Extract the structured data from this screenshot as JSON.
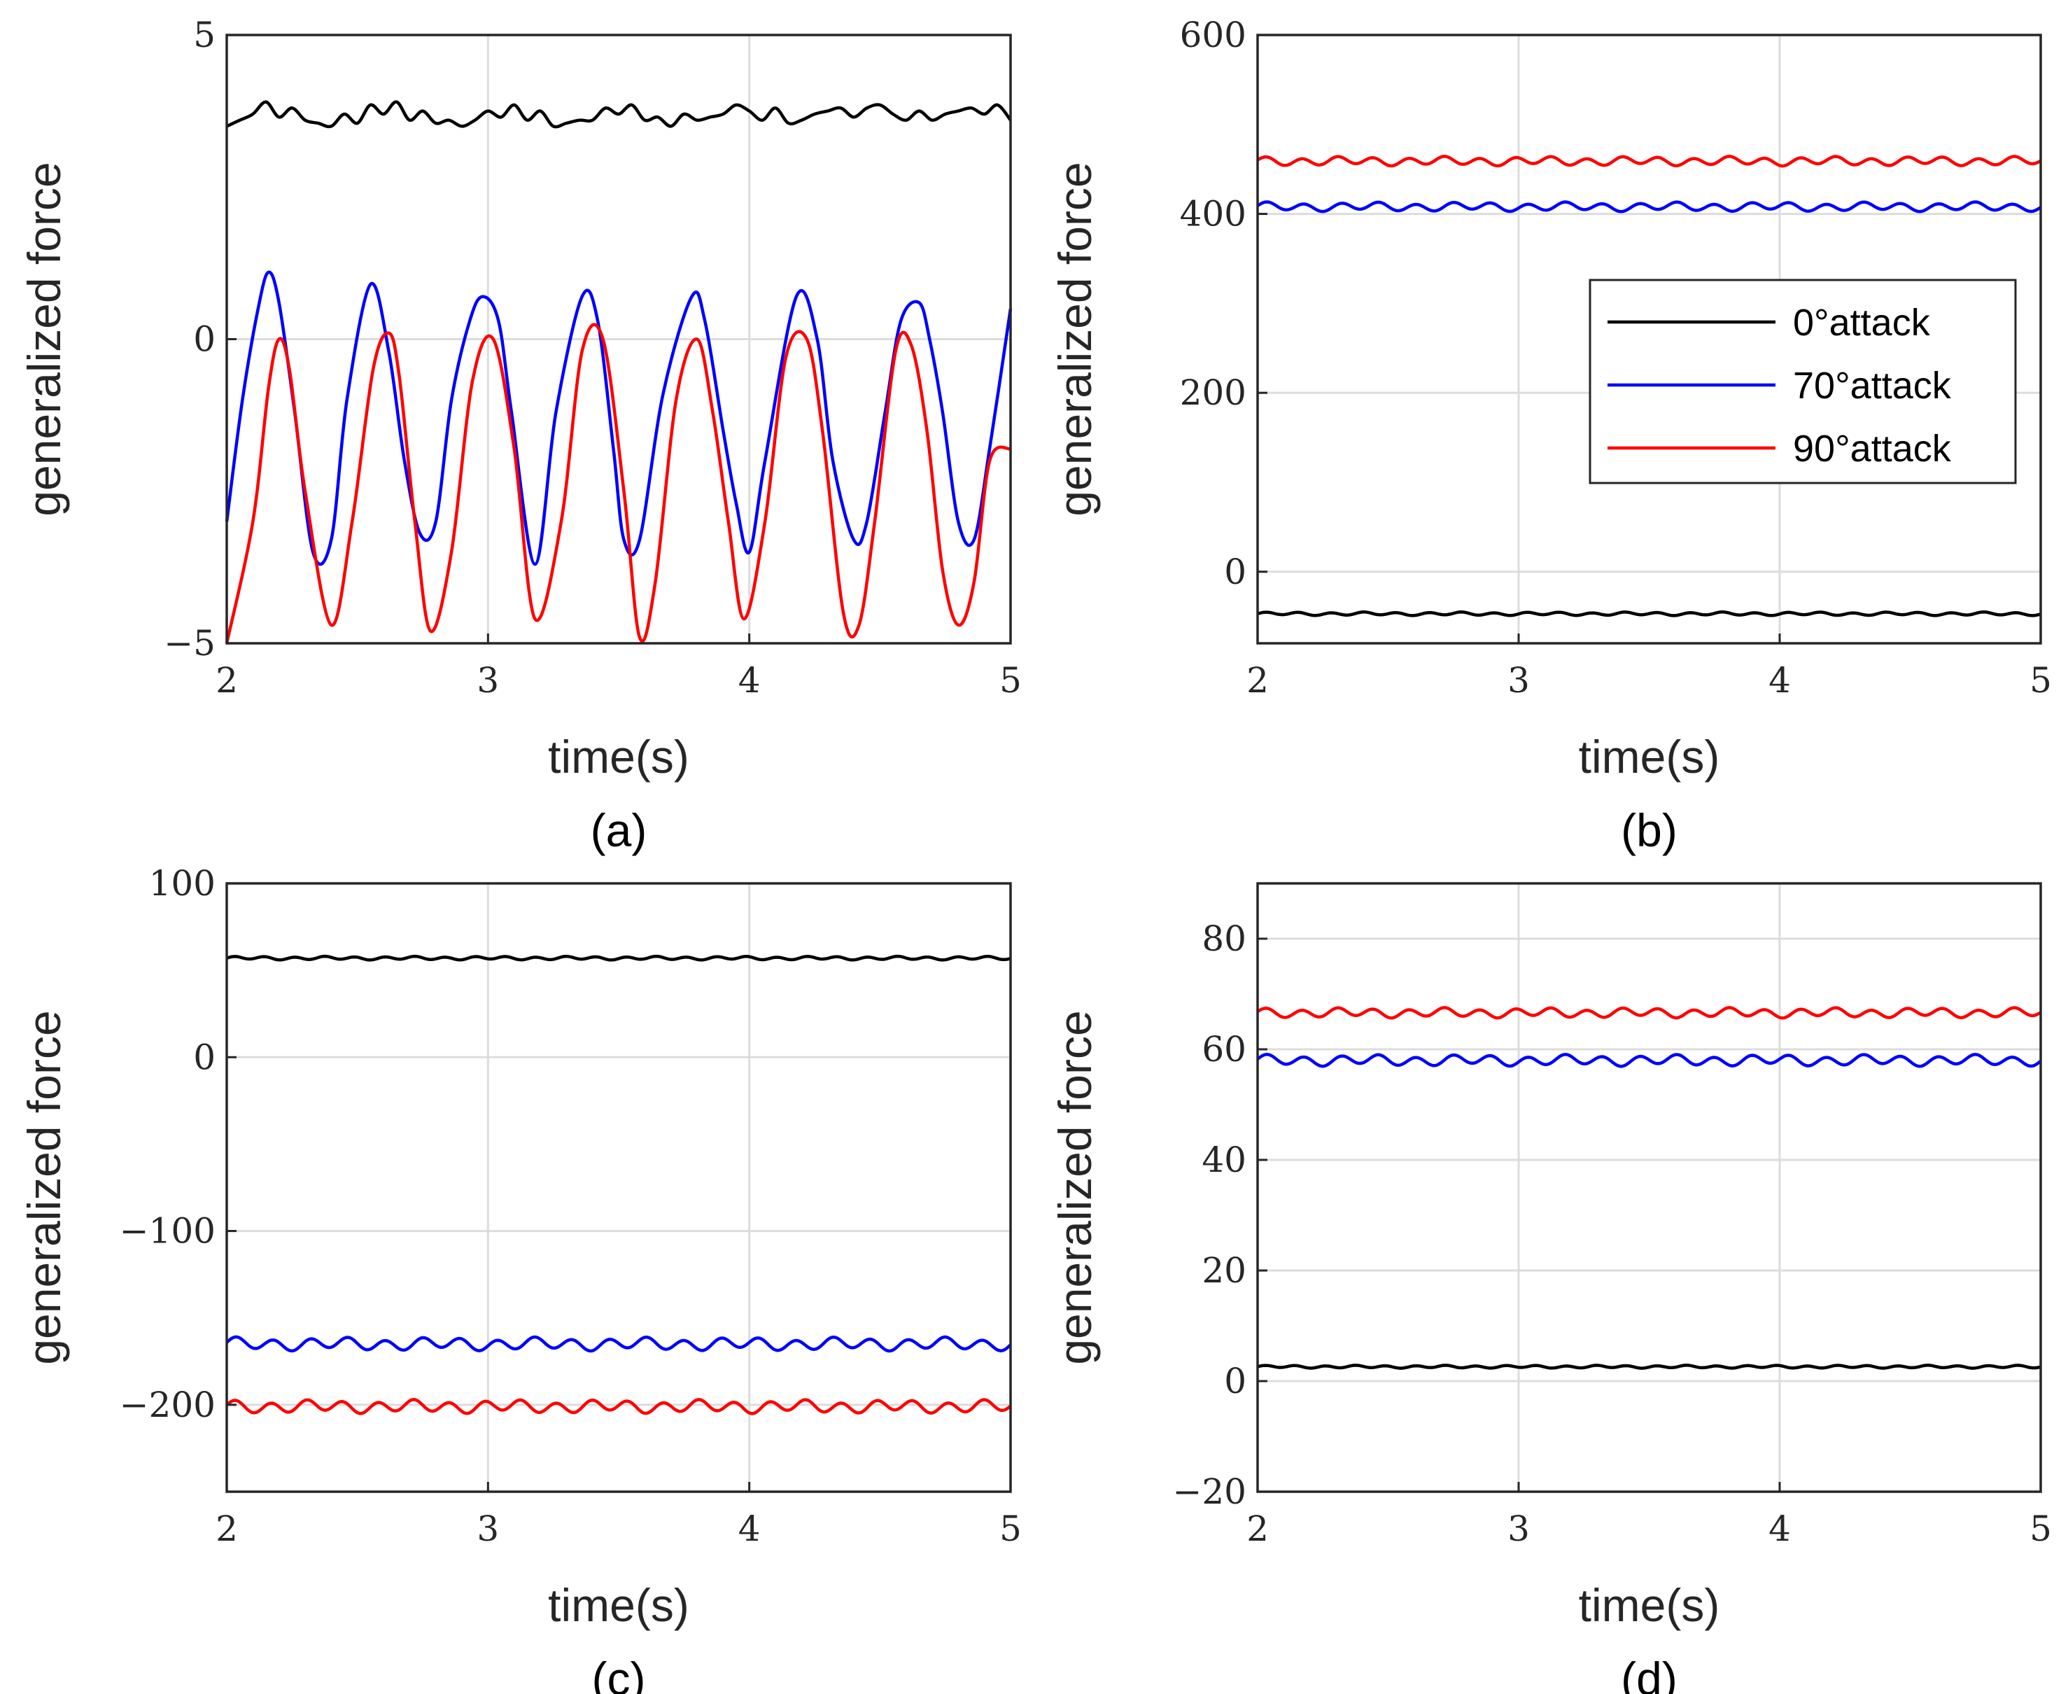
{
  "chart_data": [
    {
      "type": "line",
      "panel": "(a)",
      "xlabel": "time(s)",
      "ylabel": "generalized force",
      "xlim": [
        2,
        5
      ],
      "ylim": [
        -5,
        5
      ],
      "xticks": [
        2,
        3,
        4,
        5
      ],
      "yticks": [
        -5,
        0,
        5
      ],
      "grid": true,
      "legend": null,
      "series": [
        {
          "name": "0°attack",
          "color": "#000000",
          "x": [
            2.0,
            2.05,
            2.1,
            2.15,
            2.2,
            2.25,
            2.3,
            2.35,
            2.4,
            2.45,
            2.5,
            2.55,
            2.6,
            2.65,
            2.7,
            2.75,
            2.8,
            2.85,
            2.9,
            2.95,
            3.0,
            3.05,
            3.1,
            3.15,
            3.2,
            3.25,
            3.3,
            3.35,
            3.4,
            3.45,
            3.5,
            3.55,
            3.6,
            3.65,
            3.7,
            3.75,
            3.8,
            3.85,
            3.9,
            3.95,
            4.0,
            4.05,
            4.1,
            4.15,
            4.2,
            4.25,
            4.3,
            4.35,
            4.4,
            4.45,
            4.5,
            4.55,
            4.6,
            4.65,
            4.7,
            4.75,
            4.8,
            4.85,
            4.9,
            4.95,
            5.0
          ],
          "values": [
            3.5,
            3.6,
            3.7,
            3.9,
            3.65,
            3.8,
            3.6,
            3.55,
            3.5,
            3.7,
            3.55,
            3.85,
            3.7,
            3.9,
            3.6,
            3.75,
            3.55,
            3.6,
            3.5,
            3.6,
            3.75,
            3.65,
            3.85,
            3.6,
            3.75,
            3.5,
            3.55,
            3.6,
            3.6,
            3.8,
            3.7,
            3.85,
            3.6,
            3.65,
            3.5,
            3.7,
            3.6,
            3.65,
            3.7,
            3.85,
            3.75,
            3.6,
            3.8,
            3.55,
            3.6,
            3.7,
            3.75,
            3.8,
            3.65,
            3.8,
            3.85,
            3.7,
            3.6,
            3.75,
            3.6,
            3.7,
            3.75,
            3.8,
            3.7,
            3.85,
            3.6
          ]
        },
        {
          "name": "70°attack",
          "color": "#0000ff",
          "x": [
            2.0,
            2.06,
            2.12,
            2.16,
            2.2,
            2.26,
            2.33,
            2.4,
            2.46,
            2.55,
            2.62,
            2.68,
            2.74,
            2.8,
            2.86,
            2.93,
            2.98,
            3.04,
            3.09,
            3.18,
            3.26,
            3.36,
            3.42,
            3.48,
            3.52,
            3.58,
            3.67,
            3.78,
            3.83,
            3.9,
            3.95,
            4.0,
            4.06,
            4.18,
            4.26,
            4.32,
            4.4,
            4.45,
            4.52,
            4.58,
            4.65,
            4.69,
            4.74,
            4.8,
            4.86,
            4.92,
            5.0
          ],
          "values": [
            -3.0,
            -1.0,
            0.5,
            1.1,
            0.6,
            -1.2,
            -3.5,
            -3.3,
            -1.0,
            0.9,
            -0.2,
            -2.0,
            -3.2,
            -3.0,
            -1.0,
            0.3,
            0.7,
            0.3,
            -1.2,
            -3.7,
            -1.2,
            0.7,
            0.3,
            -1.8,
            -3.3,
            -3.3,
            -0.9,
            0.7,
            0.3,
            -1.5,
            -2.7,
            -3.5,
            -2.0,
            0.7,
            0.0,
            -2.0,
            -3.3,
            -3.0,
            -1.2,
            0.3,
            0.6,
            0.0,
            -1.2,
            -3.0,
            -3.3,
            -1.8,
            0.5
          ]
        },
        {
          "name": "90°attack",
          "color": "#ff0000",
          "x": [
            2.0,
            2.1,
            2.16,
            2.2,
            2.24,
            2.3,
            2.4,
            2.48,
            2.56,
            2.62,
            2.66,
            2.72,
            2.78,
            2.86,
            2.94,
            3.02,
            3.1,
            3.18,
            3.28,
            3.36,
            3.44,
            3.52,
            3.58,
            3.64,
            3.72,
            3.8,
            3.86,
            3.92,
            3.98,
            4.06,
            4.14,
            4.22,
            4.28,
            4.36,
            4.42,
            4.48,
            4.56,
            4.62,
            4.68,
            4.74,
            4.8,
            4.86,
            4.92,
            5.0
          ],
          "values": [
            -5.0,
            -3.0,
            -0.8,
            0.0,
            -0.5,
            -2.5,
            -4.7,
            -3.0,
            -0.5,
            0.1,
            -0.6,
            -3.0,
            -4.8,
            -3.5,
            -0.7,
            0.0,
            -1.8,
            -4.6,
            -3.0,
            -0.2,
            0.0,
            -2.5,
            -4.9,
            -4.0,
            -1.0,
            0.0,
            -1.2,
            -3.0,
            -4.6,
            -3.0,
            -0.3,
            0.0,
            -1.5,
            -4.5,
            -4.7,
            -3.0,
            -0.2,
            -0.1,
            -1.5,
            -3.8,
            -4.7,
            -4.0,
            -2.0,
            -1.8
          ]
        }
      ]
    },
    {
      "type": "line",
      "panel": "(b)",
      "xlabel": "time(s)",
      "ylabel": "generalized force",
      "xlim": [
        2,
        5
      ],
      "ylim": [
        -80,
        600
      ],
      "xticks": [
        2,
        3,
        4,
        5
      ],
      "yticks": [
        0,
        200,
        400,
        600
      ],
      "grid": true,
      "legend": {
        "placement": "upper-right",
        "entries": [
          "0°attack",
          "70°attack",
          "90°attack"
        ]
      },
      "series": [
        {
          "name": "0°attack",
          "color": "#000000",
          "mean": -47,
          "amp": 1.5,
          "cycles": 24
        },
        {
          "name": "70°attack",
          "color": "#0000ff",
          "mean": 408,
          "amp": 4,
          "cycles": 21
        },
        {
          "name": "90°attack",
          "color": "#ff0000",
          "mean": 459,
          "amp": 4,
          "cycles": 22
        }
      ]
    },
    {
      "type": "line",
      "panel": "(c)",
      "xlabel": "time(s)",
      "ylabel": "generalized force",
      "xlim": [
        2,
        5
      ],
      "ylim": [
        -250,
        100
      ],
      "xticks": [
        2,
        3,
        4,
        5
      ],
      "yticks": [
        -200,
        -100,
        0,
        100
      ],
      "grid": true,
      "legend": null,
      "series": [
        {
          "name": "0°attack",
          "color": "#000000",
          "mean": 57,
          "amp": 0.8,
          "cycles": 26
        },
        {
          "name": "70°attack",
          "color": "#0000ff",
          "mean": -165,
          "amp": 3,
          "cycles": 21
        },
        {
          "name": "90°attack",
          "color": "#ff0000",
          "mean": -201,
          "amp": 3,
          "cycles": 22
        }
      ]
    },
    {
      "type": "line",
      "panel": "(d)",
      "xlabel": "time(s)",
      "ylabel": "generalized force",
      "xlim": [
        2,
        5
      ],
      "ylim": [
        -20,
        90
      ],
      "xticks": [
        2,
        3,
        4,
        5
      ],
      "yticks": [
        -20,
        0,
        20,
        40,
        60,
        80
      ],
      "grid": true,
      "legend": null,
      "series": [
        {
          "name": "0°attack",
          "color": "#000000",
          "mean": 2.6,
          "amp": 0.2,
          "cycles": 26
        },
        {
          "name": "70°attack",
          "color": "#0000ff",
          "mean": 58,
          "amp": 0.8,
          "cycles": 21
        },
        {
          "name": "90°attack",
          "color": "#ff0000",
          "mean": 66.6,
          "amp": 0.7,
          "cycles": 22
        }
      ]
    }
  ]
}
